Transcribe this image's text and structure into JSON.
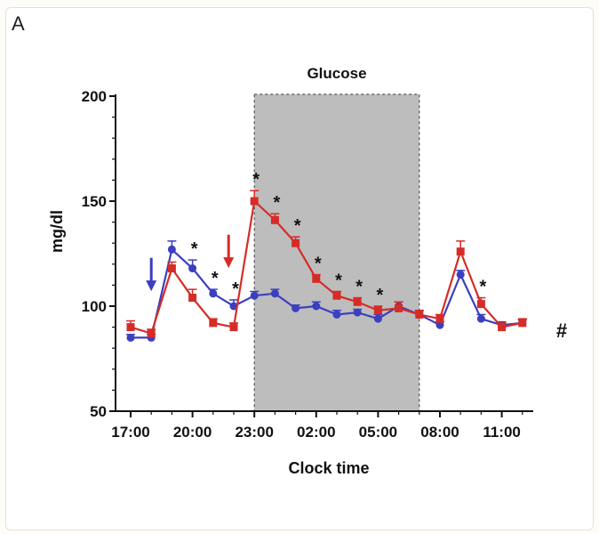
{
  "panel_label": "A",
  "chart_data": {
    "type": "line",
    "ylabel": "mg/dl",
    "xlabel": "Clock time",
    "ylim": [
      50,
      200
    ],
    "yticks": [
      50,
      100,
      150,
      200
    ],
    "xticks": [
      "17:00",
      "20:00",
      "23:00",
      "02:00",
      "05:00",
      "08:00",
      "11:00"
    ],
    "x": [
      "17:00",
      "18:00",
      "19:00",
      "20:00",
      "21:00",
      "22:00",
      "23:00",
      "00:00",
      "01:00",
      "02:00",
      "03:00",
      "04:00",
      "05:00",
      "06:00",
      "07:00",
      "08:00",
      "09:00",
      "10:00",
      "11:00",
      "12:00"
    ],
    "shaded_region": {
      "label": "Glucose",
      "from": "23:00",
      "to": "07:00",
      "color": "#bdbdbd"
    },
    "series": [
      {
        "color": "#3b3fbf",
        "marker": "circle",
        "values": [
          85,
          85,
          127,
          118,
          106,
          100,
          105,
          106,
          99,
          100,
          96,
          97,
          94,
          100,
          96,
          91,
          115,
          94,
          91,
          92
        ],
        "errors": [
          1.5,
          1.5,
          4,
          4,
          2,
          3,
          2,
          2,
          1.5,
          2,
          2,
          1.5,
          2,
          2,
          2,
          1.5,
          2,
          2,
          1.5,
          1.5
        ]
      },
      {
        "color": "#d62c27",
        "marker": "square",
        "values": [
          90,
          87,
          118,
          104,
          92,
          90,
          150,
          141,
          130,
          113,
          105,
          102,
          98,
          99,
          96,
          94,
          126,
          101,
          90,
          92
        ],
        "errors": [
          3,
          2,
          3,
          4,
          2,
          2,
          5,
          3,
          3,
          2,
          2,
          2,
          2,
          3,
          2,
          2,
          5,
          3,
          2,
          2
        ]
      }
    ],
    "arrows": [
      {
        "x": "18:00",
        "y": 110,
        "color": "#3b3fbf"
      },
      {
        "x": "21:45",
        "y": 121,
        "color": "#d62c27"
      }
    ],
    "significance_markers": {
      "symbol": "*",
      "at": [
        "20:00",
        "21:00",
        "22:00",
        "23:00",
        "00:00",
        "01:00",
        "02:00",
        "03:00",
        "04:00",
        "05:00",
        "10:00"
      ]
    },
    "overall_marker": "#"
  }
}
